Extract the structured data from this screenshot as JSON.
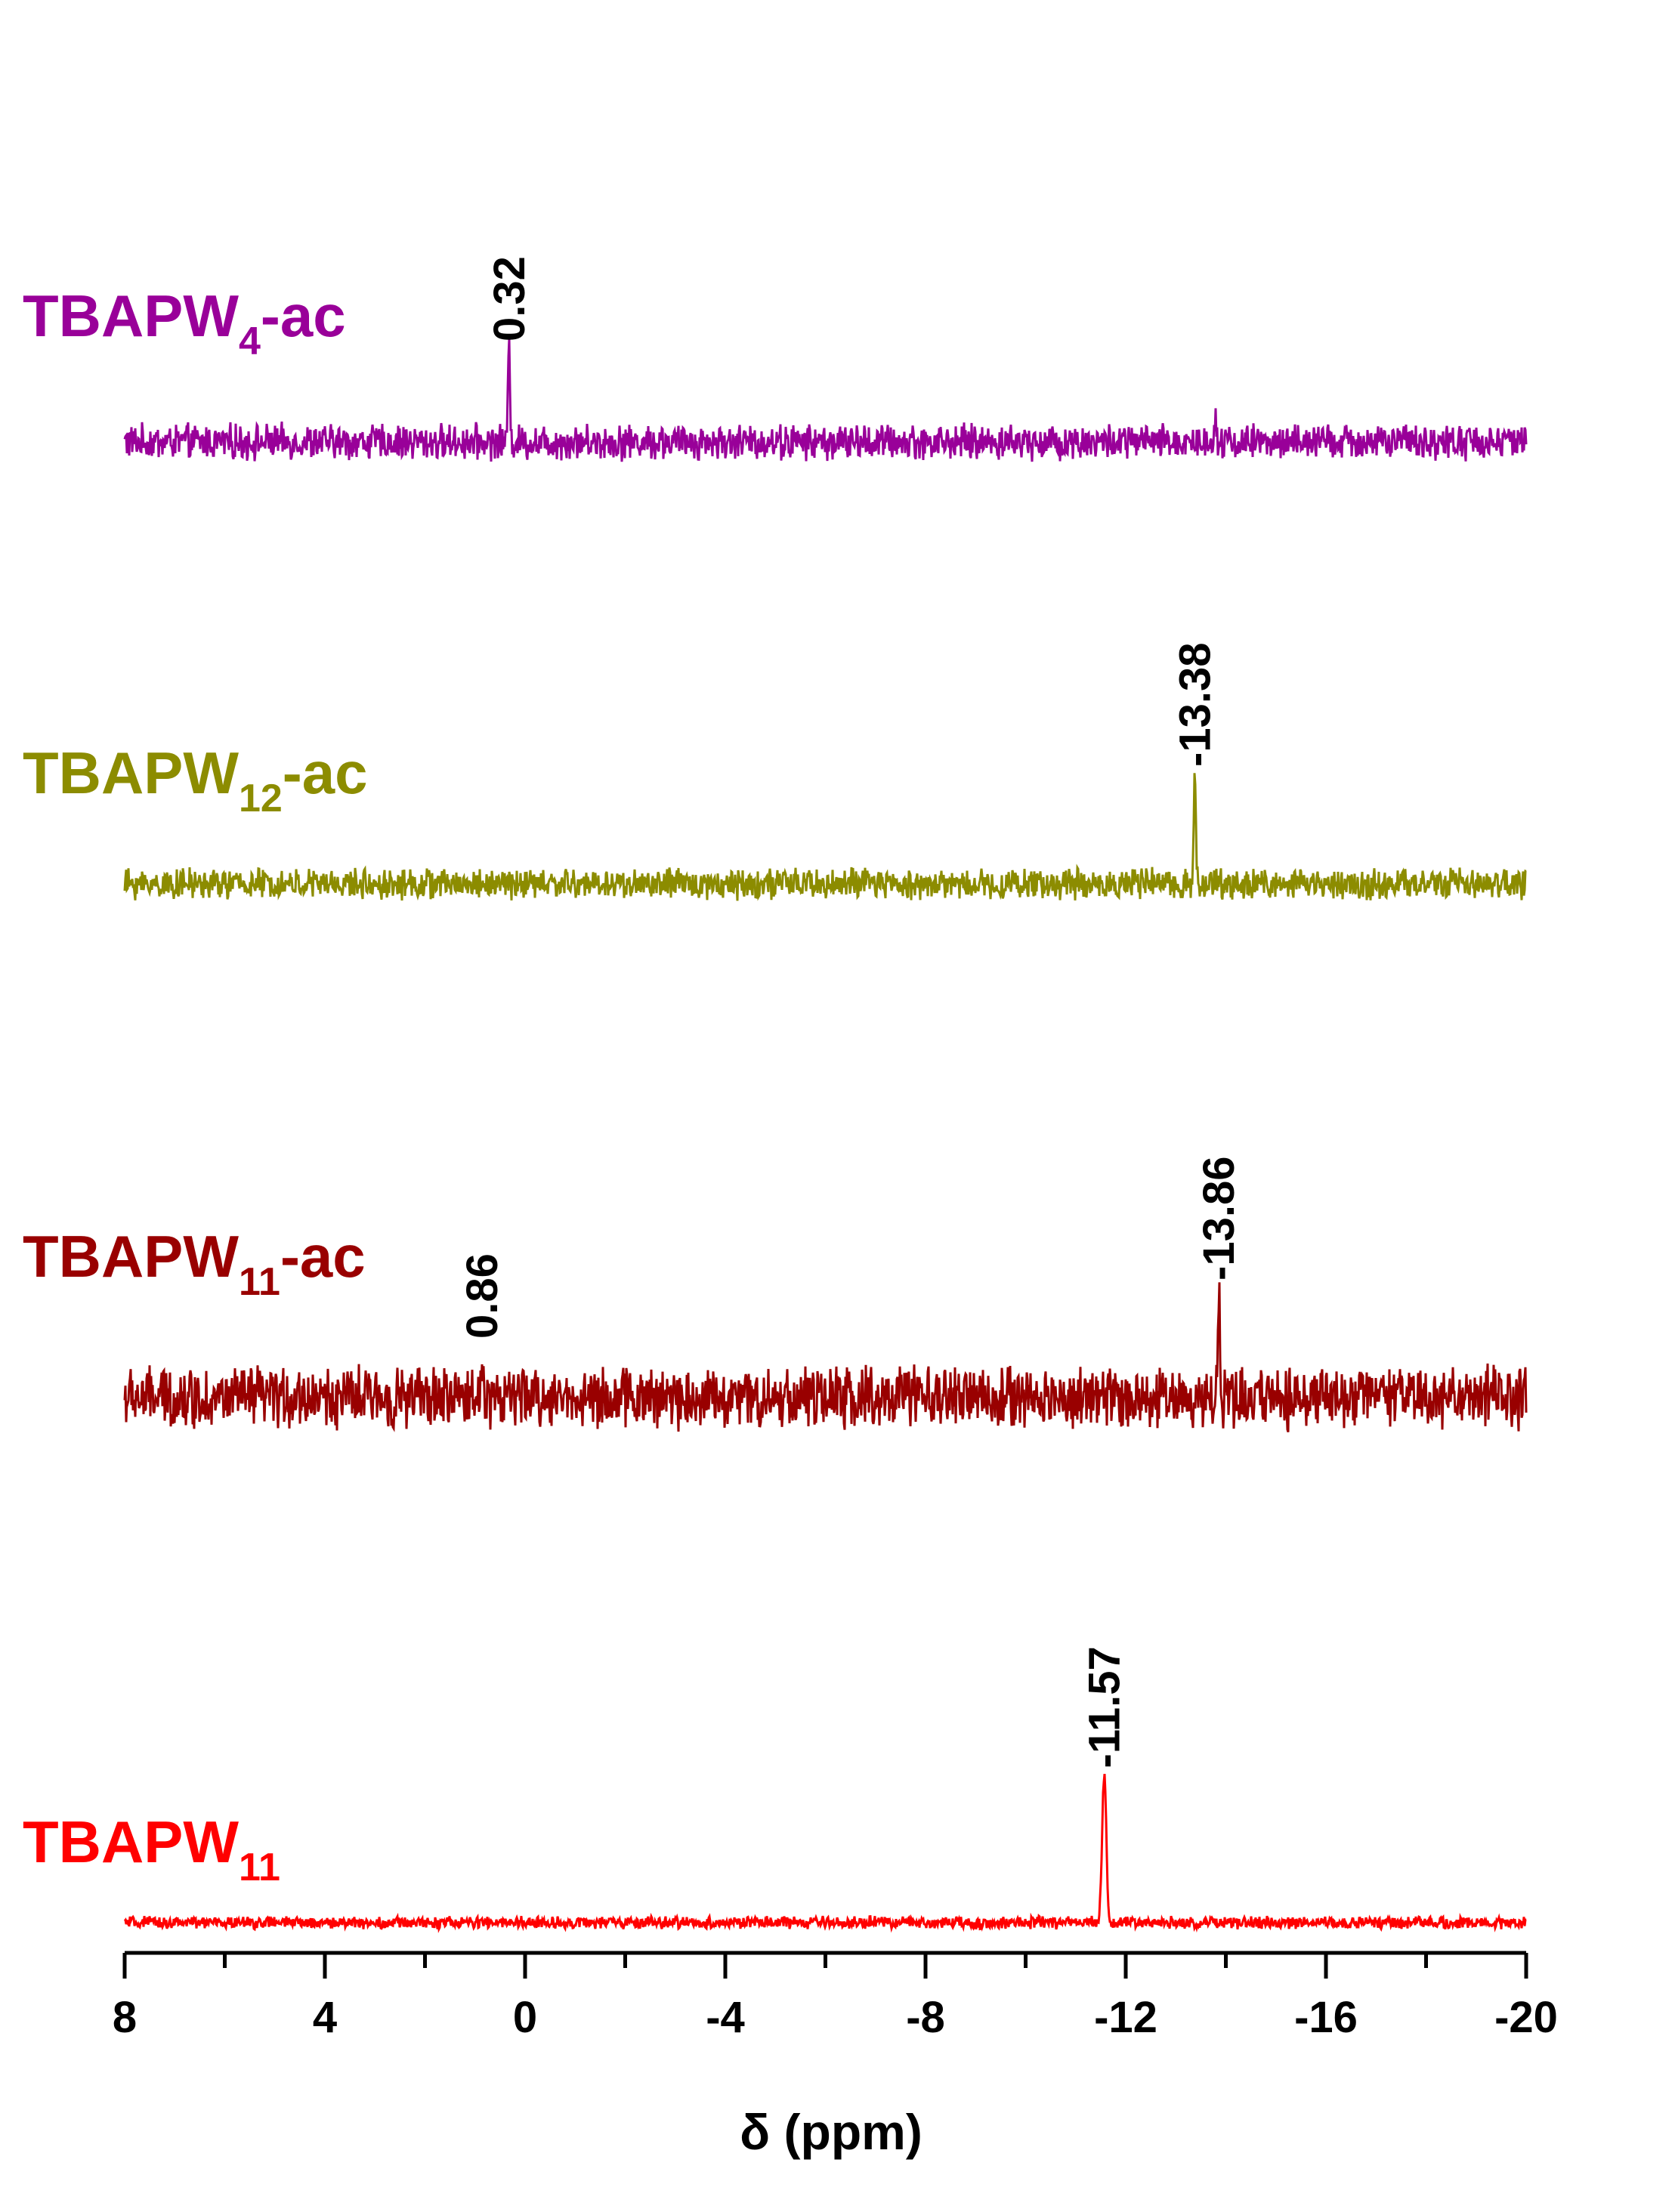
{
  "chart_data": {
    "type": "line",
    "xlabel": "δ (ppm)",
    "xlim": [
      8,
      -20
    ],
    "x_ticks": [
      8,
      4,
      0,
      -4,
      -8,
      -12,
      -16,
      -20
    ],
    "x_tick_labels": [
      "8",
      "4",
      "0",
      "-4",
      "-8",
      "-12",
      "-16",
      "-20"
    ],
    "series": [
      {
        "name": "TBAPW4-ac",
        "label_main": "TBAPW",
        "label_sub": "4",
        "label_suffix": "-ac",
        "color": "#990099",
        "noise_amplitude": 0.35,
        "peaks": [
          {
            "x": 0.32,
            "label": "0.32",
            "height": 2.2,
            "width": 0.03
          },
          {
            "x": -13.8,
            "label": "",
            "height": 0.7,
            "width": 0.03
          }
        ]
      },
      {
        "name": "TBAPW12-ac",
        "label_main": "TBAPW",
        "label_sub": "12",
        "label_suffix": "-ac",
        "color": "#8C8C00",
        "noise_amplitude": 0.3,
        "peaks": [
          {
            "x": -13.38,
            "label": "-13.38",
            "height": 2.6,
            "width": 0.03
          }
        ]
      },
      {
        "name": "TBAPW11-ac",
        "label_main": "TBAPW",
        "label_sub": "11",
        "label_suffix": "-ac",
        "color": "#990000",
        "noise_amplitude": 0.6,
        "peaks": [
          {
            "x": 0.86,
            "label": "0.86",
            "height": 1.2,
            "width": 0.03
          },
          {
            "x": -13.86,
            "label": "-13.86",
            "height": 2.6,
            "width": 0.03
          }
        ]
      },
      {
        "name": "TBAPW11",
        "label_main": "TBAPW",
        "label_sub": "11",
        "label_suffix": "",
        "color": "#FF0000",
        "noise_amplitude": 0.12,
        "peaks": [
          {
            "x": -11.57,
            "label": "-11.57",
            "height": 3.5,
            "width": 0.06
          }
        ]
      }
    ]
  }
}
